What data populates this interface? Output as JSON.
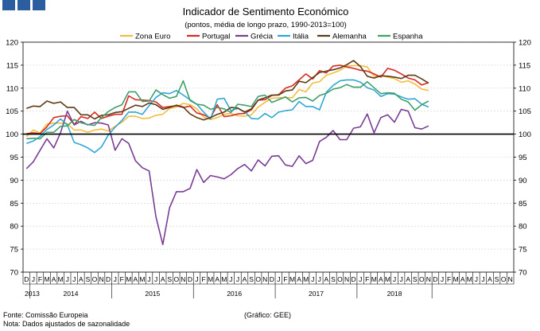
{
  "header": {
    "brand_color": "#2c5d9f"
  },
  "chart_data": {
    "type": "line",
    "title": "Indicador de Sentimento Económico",
    "subtitle": "(pontos, média de longo prazo, 1990-2013=100)",
    "ylim": [
      70,
      120
    ],
    "yticks": [
      70,
      75,
      80,
      85,
      90,
      95,
      100,
      105,
      110,
      115,
      120
    ],
    "reference_line": 100,
    "month_labels": [
      "D",
      "J",
      "F",
      "M",
      "A",
      "M",
      "J",
      "J",
      "A",
      "S",
      "O",
      "N",
      "D",
      "J",
      "F",
      "M",
      "A",
      "M",
      "J",
      "J",
      "A",
      "S",
      "O",
      "N",
      "D",
      "J",
      "F",
      "M",
      "A",
      "M",
      "J",
      "J",
      "A",
      "S",
      "O",
      "N",
      "D",
      "J",
      "F",
      "M",
      "A",
      "M",
      "J",
      "J",
      "A",
      "S",
      "O",
      "N",
      "D",
      "J",
      "F",
      "M",
      "A",
      "M",
      "J",
      "J",
      "A",
      "S",
      "O",
      "N",
      "D",
      "J",
      "F",
      "M",
      "A",
      "M",
      "J",
      "J",
      "A",
      "S",
      "O",
      "N"
    ],
    "years": [
      {
        "label": "2013",
        "start": 0,
        "end": 1
      },
      {
        "label": "2014",
        "start": 1,
        "end": 13
      },
      {
        "label": "2015",
        "start": 13,
        "end": 25
      },
      {
        "label": "2016",
        "start": 25,
        "end": 37
      },
      {
        "label": "2017",
        "start": 37,
        "end": 49
      },
      {
        "label": "2018",
        "start": 49,
        "end": 60
      }
    ],
    "series": [
      {
        "name": "Zona Euro",
        "color": "#f2bd3c",
        "values": [
          99.5,
          100.9,
          100.2,
          102.2,
          102.4,
          102.4,
          102.3,
          100.9,
          100.9,
          100.4,
          100.9,
          101.1,
          100.7,
          101.7,
          102.6,
          103.9,
          103.9,
          103.4,
          103.5,
          104.1,
          104.3,
          105.6,
          105.9,
          106.7,
          106.4,
          105.5,
          103.7,
          103.2,
          103.6,
          104.3,
          104.5,
          104.0,
          103.9,
          104.2,
          105.9,
          106.9,
          107.8,
          107.9,
          108.0,
          107.9,
          109.7,
          109.2,
          111.1,
          111.4,
          112.8,
          113.3,
          113.9,
          114.8,
          114.9,
          114.9,
          114.6,
          112.6,
          112.7,
          112.4,
          112.1,
          111.3,
          111.6,
          110.9,
          109.8,
          109.5
        ]
      },
      {
        "name": "Portugal",
        "color": "#d62b25",
        "values": [
          100.1,
          100.3,
          100.1,
          101.6,
          103.6,
          103.9,
          104.0,
          102.1,
          103.8,
          103.4,
          104.8,
          103.4,
          103.9,
          104.3,
          104.3,
          108.3,
          107.5,
          107.4,
          107.3,
          107.0,
          105.8,
          106.0,
          106.2,
          105.8,
          106.1,
          104.6,
          104.2,
          103.5,
          106.4,
          103.8,
          104.0,
          104.4,
          104.5,
          105.3,
          107.4,
          107.5,
          108.4,
          108.6,
          110.0,
          110.5,
          111.8,
          113.1,
          112.0,
          113.8,
          113.3,
          114.8,
          115.0,
          114.6,
          114.3,
          113.9,
          113.7,
          113.1,
          112.4,
          114.3,
          113.9,
          113.1,
          112.2,
          111.8,
          110.7,
          111.2
        ]
      },
      {
        "name": "Grécia",
        "color": "#7a3d96",
        "values": [
          92.5,
          94.0,
          96.5,
          99.0,
          97.0,
          100.3,
          105.0,
          102.0,
          102.8,
          102.0,
          102.5,
          102.4,
          102.0,
          96.5,
          99.0,
          98.0,
          94.2,
          92.7,
          92.0,
          82.0,
          76.0,
          84.0,
          87.5,
          87.5,
          88.2,
          92.3,
          89.5,
          91.0,
          90.7,
          90.3,
          91.2,
          92.5,
          93.4,
          92.0,
          94.4,
          93.1,
          95.2,
          95.3,
          93.3,
          93.0,
          95.3,
          93.6,
          94.3,
          98.4,
          99.3,
          100.8,
          98.8,
          98.8,
          101.3,
          101.6,
          104.4,
          100.3,
          103.6,
          104.2,
          102.6,
          105.4,
          105.0,
          101.4,
          101.1,
          101.8
        ]
      },
      {
        "name": "Itália",
        "color": "#32a6d3",
        "values": [
          98.0,
          98.5,
          99.5,
          101.0,
          102.0,
          103.3,
          102.0,
          98.2,
          97.7,
          97.0,
          96.0,
          97.2,
          99.8,
          101.5,
          103.0,
          104.8,
          104.8,
          104.3,
          106.2,
          108.0,
          109.0,
          108.8,
          109.5,
          108.5,
          107.5,
          106.5,
          104.8,
          103.3,
          107.6,
          107.8,
          105.1,
          105.6,
          104.9,
          103.4,
          103.3,
          104.5,
          103.6,
          104.8,
          105.1,
          105.3,
          107.1,
          106.0,
          106.0,
          105.3,
          109.1,
          110.6,
          111.6,
          111.8,
          111.8,
          111.3,
          110.1,
          109.6,
          108.2,
          108.8,
          108.7,
          108.1,
          107.6,
          107.7,
          106.5,
          105.9
        ]
      },
      {
        "name": "Alemanha",
        "color": "#5b3a14",
        "values": [
          105.6,
          106.1,
          106.0,
          107.2,
          106.7,
          107.0,
          105.8,
          105.8,
          104.2,
          104.2,
          103.3,
          104.1,
          104.2,
          104.7,
          104.9,
          105.6,
          106.3,
          106.0,
          106.8,
          106.4,
          105.4,
          105.8,
          106.3,
          105.9,
          104.4,
          103.6,
          103.1,
          103.6,
          104.3,
          104.8,
          105.8,
          105.7,
          104.8,
          105.5,
          107.4,
          107.9,
          108.5,
          108.5,
          109.4,
          109.6,
          111.5,
          111.2,
          112.3,
          113.4,
          113.7,
          114.0,
          114.4,
          115.1,
          116.0,
          114.7,
          112.6,
          112.2,
          112.7,
          112.6,
          112.4,
          112.1,
          112.8,
          112.8,
          112.0,
          111.1
        ]
      },
      {
        "name": "Espanha",
        "color": "#3e9f6b",
        "values": [
          99.0,
          99.1,
          99.0,
          100.4,
          100.4,
          101.7,
          101.8,
          103.2,
          102.5,
          102.1,
          101.9,
          103.6,
          104.9,
          105.8,
          106.4,
          109.2,
          109.2,
          107.1,
          107.2,
          109.6,
          108.6,
          107.8,
          108.2,
          111.6,
          107.3,
          106.5,
          106.3,
          105.4,
          105.8,
          105.5,
          104.7,
          106.5,
          106.3,
          106.0,
          108.2,
          108.5,
          106.9,
          107.5,
          108.1,
          107.0,
          107.9,
          108.0,
          107.2,
          108.4,
          108.9,
          109.8,
          110.1,
          110.8,
          110.2,
          110.2,
          111.4,
          110.1,
          108.8,
          109.0,
          108.9,
          107.6,
          107.0,
          105.2,
          106.4,
          107.2
        ]
      }
    ]
  },
  "footer": {
    "source": "Fonte: Comissão Europeia",
    "note": "Nota: Dados ajustados de sazonalidade",
    "credit": "(Gráfico: GEE)"
  }
}
